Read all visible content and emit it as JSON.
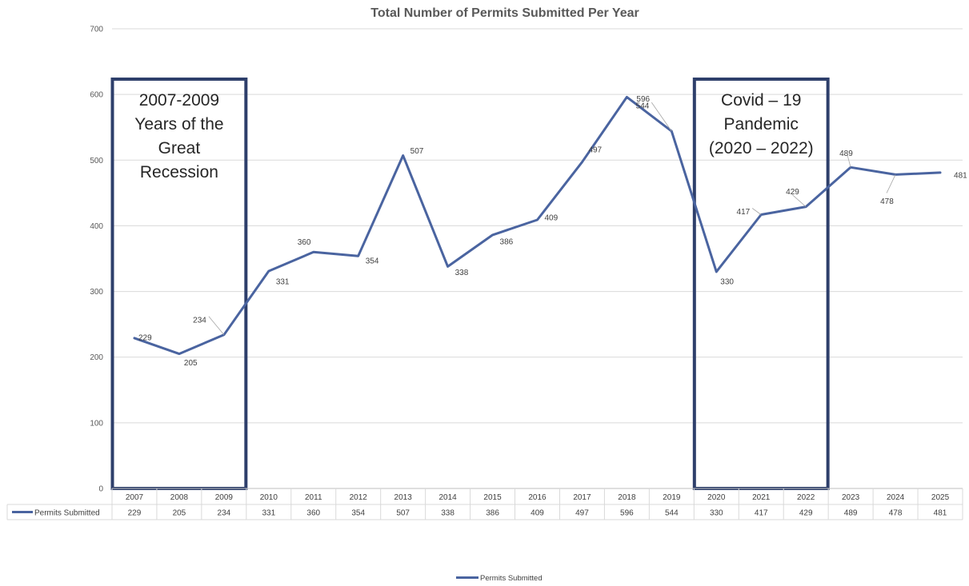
{
  "chart_data": {
    "type": "line",
    "title": "Total Number of Permits Submitted Per Year",
    "categories": [
      "2007",
      "2008",
      "2009",
      "2010",
      "2011",
      "2012",
      "2013",
      "2014",
      "2015",
      "2016",
      "2017",
      "2018",
      "2019",
      "2020",
      "2021",
      "2022",
      "2023",
      "2024",
      "2025"
    ],
    "series": [
      {
        "name": "Permits Submitted",
        "values": [
          229,
          205,
          234,
          331,
          360,
          354,
          507,
          338,
          386,
          409,
          497,
          596,
          544,
          330,
          417,
          429,
          489,
          478,
          481
        ],
        "color": "#4a64a0"
      }
    ],
    "ylim": [
      0,
      700
    ],
    "yticks": [
      0,
      100,
      200,
      300,
      400,
      500,
      600,
      700
    ],
    "grid": true,
    "data_table": true,
    "legend_position": "bottom",
    "annotations": [
      {
        "lines": [
          "2007-2009",
          "Years of the",
          "Great",
          "Recession"
        ],
        "span": [
          "2007",
          "2009"
        ]
      },
      {
        "lines": [
          "Covid – 19",
          "Pandemic",
          "(2020 – 2022)"
        ],
        "span": [
          "2020",
          "2022"
        ]
      }
    ],
    "annotation_box_color": "#2e3f6b",
    "gridline_color": "#d9d9d9"
  }
}
